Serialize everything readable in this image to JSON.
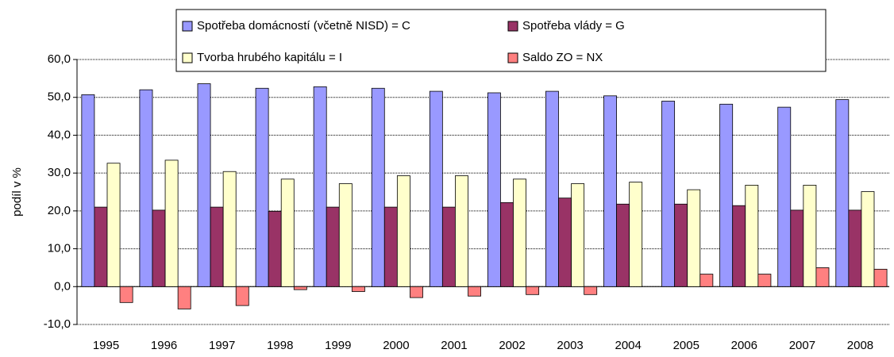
{
  "chart_data": {
    "type": "bar",
    "y_label": "podíl v %",
    "categories": [
      "1995",
      "1996",
      "1997",
      "1998",
      "1999",
      "2000",
      "2001",
      "2002",
      "2003",
      "2004",
      "2005",
      "2006",
      "2007",
      "2008"
    ],
    "series": [
      {
        "name": "Spotřeba domácností (včetně NISD) = C",
        "color": "#9999ff",
        "values": [
          50.7,
          52.0,
          53.6,
          52.4,
          52.8,
          52.4,
          51.6,
          51.2,
          51.6,
          50.4,
          49.0,
          48.2,
          47.4,
          49.4
        ]
      },
      {
        "name": "Spotřeba vlády = G",
        "color": "#993366",
        "values": [
          21.0,
          20.2,
          21.0,
          19.9,
          21.0,
          21.0,
          21.0,
          22.2,
          23.4,
          21.8,
          21.8,
          21.4,
          20.2,
          20.2
        ]
      },
      {
        "name": "Tvorba hrubého kapitálu = I",
        "color": "#ffffcc",
        "values": [
          32.6,
          33.4,
          30.4,
          28.4,
          27.2,
          29.3,
          29.3,
          28.4,
          27.2,
          27.6,
          25.6,
          26.8,
          26.8,
          25.1
        ]
      },
      {
        "name": "Saldo ZO = NX",
        "color": "#ff8080",
        "values": [
          -4.2,
          -5.9,
          -5.0,
          -0.8,
          -1.3,
          -2.9,
          -2.5,
          -2.1,
          -2.1,
          0,
          3.3,
          3.3,
          5.0,
          4.6
        ]
      }
    ],
    "ylim": [
      -10,
      60
    ],
    "yticks": [
      {
        "value": -10,
        "label": "-10,0"
      },
      {
        "value": 0,
        "label": "0,0"
      },
      {
        "value": 10,
        "label": "10,0"
      },
      {
        "value": 20,
        "label": "20,0"
      },
      {
        "value": 30,
        "label": "30,0"
      },
      {
        "value": 40,
        "label": "40,0"
      },
      {
        "value": 50,
        "label": "50,0"
      },
      {
        "value": 60,
        "label": "60,0"
      }
    ],
    "grid": true,
    "legend": "top"
  }
}
